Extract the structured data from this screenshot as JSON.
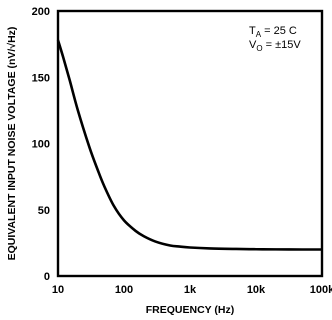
{
  "chart_data": {
    "type": "line",
    "title": "",
    "xlabel": "FREQUENCY (Hz)",
    "ylabel": "EQUIVALENT INPUT NOISE VOLTAGE (nV/√Hz)",
    "x_scale": "log",
    "xlim": [
      10,
      100000
    ],
    "ylim": [
      0,
      200
    ],
    "x_ticks": [
      10,
      100,
      1000,
      10000,
      100000
    ],
    "x_tick_labels": [
      "10",
      "100",
      "1k",
      "10k",
      "100k"
    ],
    "y_ticks": [
      0,
      50,
      100,
      150,
      200
    ],
    "y_tick_labels": [
      "0",
      "50",
      "100",
      "150",
      "200"
    ],
    "grid": false,
    "legend": "none",
    "annotations": [
      {
        "main": "T",
        "sub": "A",
        "rest": " = 25 C"
      },
      {
        "main": "V",
        "sub": "O",
        "rest": " = ±15V"
      }
    ],
    "series": [
      {
        "x": [
          10,
          12,
          15,
          20,
          30,
          40,
          50,
          70,
          100,
          150,
          200,
          300,
          500,
          700,
          1000,
          2000,
          5000,
          10000,
          20000,
          50000,
          100000
        ],
        "y": [
          178,
          165,
          148,
          125,
          97,
          80,
          68,
          53,
          42,
          34,
          30,
          26,
          23,
          22.2,
          21.5,
          20.8,
          20.4,
          20.2,
          20.1,
          20.0,
          20.0
        ]
      }
    ]
  }
}
